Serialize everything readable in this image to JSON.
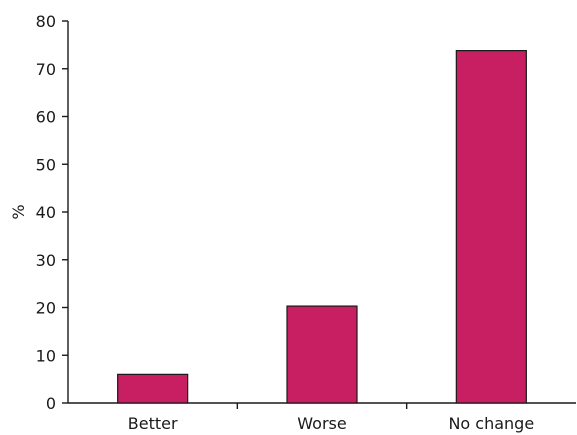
{
  "chart_data": {
    "type": "bar",
    "title": "",
    "xlabel": "",
    "ylabel": "%",
    "categories": [
      "Better",
      "Worse",
      "No change"
    ],
    "values": [
      6,
      20.3,
      73.8
    ],
    "ylim": [
      0,
      80
    ],
    "yticks": [
      0,
      10,
      20,
      30,
      40,
      50,
      60,
      70,
      80
    ],
    "grid": false,
    "bar_color": "#C71F62",
    "axis_color": "#1a1a1a"
  }
}
